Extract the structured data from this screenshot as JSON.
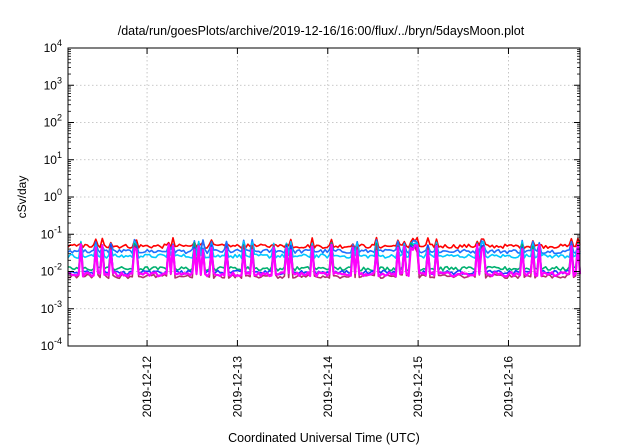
{
  "chart_data": {
    "type": "line",
    "title": "/data/run/goesPlots/archive/2019-12-16/16:00/flux/../bryn/5daysMoon.plot",
    "xlabel": "Coordinated Universal Time (UTC)",
    "ylabel": "cSv/day",
    "yscale": "log",
    "ylim": [
      0.0001,
      10000
    ],
    "y_ticks": [
      {
        "base": "10",
        "exp": "-4"
      },
      {
        "base": "10",
        "exp": "-3"
      },
      {
        "base": "10",
        "exp": "-2"
      },
      {
        "base": "10",
        "exp": "-1"
      },
      {
        "base": "10",
        "exp": "0"
      },
      {
        "base": "10",
        "exp": "1"
      },
      {
        "base": "10",
        "exp": "2"
      },
      {
        "base": "10",
        "exp": "3"
      },
      {
        "base": "10",
        "exp": "4"
      }
    ],
    "xlim": [
      "2019-12-11T03:00",
      "2019-12-16T19:00"
    ],
    "x_ticks": [
      "2019-12-12",
      "2019-12-13",
      "2019-12-14",
      "2019-12-15",
      "2019-12-16"
    ],
    "grid": true,
    "series": [
      {
        "color": "#ff0000",
        "baseline": 0.048,
        "spike": 0.075,
        "spike_rate": 0.22
      },
      {
        "color": "#1f6fff",
        "baseline": 0.035,
        "spike": 0.065,
        "spike_rate": 0.22
      },
      {
        "color": "#00c8ff",
        "baseline": 0.026,
        "spike": 0.06,
        "spike_rate": 0.22
      },
      {
        "color": "#00b070",
        "baseline": 0.012,
        "spike": 0.055,
        "spike_rate": 0.22
      },
      {
        "color": "#1a3fff",
        "baseline": 0.0095,
        "spike": 0.05,
        "spike_rate": 0.22
      },
      {
        "color": "#b0306f",
        "baseline": 0.0075,
        "spike": 0.045,
        "spike_rate": 0.22
      },
      {
        "color": "#ff00ff",
        "baseline": 0.0085,
        "spike": 0.05,
        "spike_rate": 0.22
      }
    ]
  }
}
